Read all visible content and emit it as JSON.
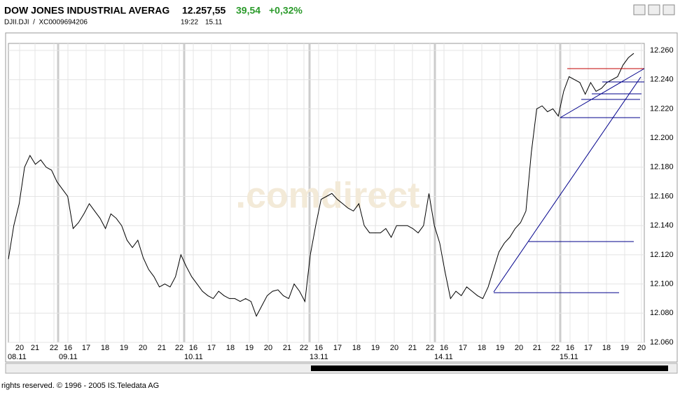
{
  "header": {
    "title": "DOW JONES INDUSTRIAL AVERAG",
    "price": "12.257,55",
    "change": "39,54",
    "change_pct": "+0,32%",
    "symbol": "DJII.DJI  /  XC0009694206",
    "time": "19:22",
    "date": "15.11"
  },
  "chart_data": {
    "type": "line",
    "watermark": ".comdirect",
    "color": "#000000",
    "ylim": [
      12060,
      12260
    ],
    "yticks": [
      {
        "value": 12060,
        "label": "12.060"
      },
      {
        "value": 12080,
        "label": "12.080"
      },
      {
        "value": 12100,
        "label": "12.100"
      },
      {
        "value": 12120,
        "label": "12.120"
      },
      {
        "value": 12140,
        "label": "12.140"
      },
      {
        "value": 12160,
        "label": "12.160"
      },
      {
        "value": 12180,
        "label": "12.180"
      },
      {
        "value": 12200,
        "label": "12.200"
      },
      {
        "value": 12220,
        "label": "12.220"
      },
      {
        "value": 12240,
        "label": "12.240"
      },
      {
        "value": 12260,
        "label": "12.260"
      }
    ],
    "hour_labels": [
      "20",
      "21",
      "22",
      "16",
      "17",
      "18",
      "19",
      "20",
      "21",
      "22",
      "16",
      "17",
      "18",
      "19",
      "20",
      "21",
      "22",
      "16",
      "17",
      "18",
      "19",
      "20",
      "21",
      "22",
      "16",
      "17",
      "18",
      "19",
      "20",
      "21",
      "22",
      "16",
      "17",
      "18",
      "19",
      "20"
    ],
    "date_labels": [
      "08.11",
      "09.11",
      "10.11",
      "13.11",
      "14.11",
      "15.11"
    ],
    "values": [
      12117,
      12140,
      12155,
      12180,
      12188,
      12182,
      12185,
      12180,
      12178,
      12170,
      12165,
      12160,
      12138,
      12142,
      12148,
      12155,
      12150,
      12145,
      12138,
      12148,
      12145,
      12140,
      12130,
      12125,
      12130,
      12118,
      12110,
      12105,
      12098,
      12100,
      12098,
      12105,
      12120,
      12112,
      12105,
      12100,
      12095,
      12092,
      12090,
      12095,
      12092,
      12090,
      12090,
      12088,
      12090,
      12088,
      12078,
      12085,
      12092,
      12095,
      12096,
      12092,
      12090,
      12100,
      12095,
      12088,
      12120,
      12140,
      12158,
      12160,
      12162,
      12158,
      12155,
      12152,
      12150,
      12155,
      12140,
      12135,
      12135,
      12135,
      12138,
      12132,
      12140,
      12140,
      12140,
      12138,
      12135,
      12140,
      12162,
      12140,
      12128,
      12108,
      12090,
      12095,
      12092,
      12098,
      12095,
      12092,
      12090,
      12098,
      12110,
      12122,
      12128,
      12132,
      12138,
      12142,
      12150,
      12190,
      12220,
      12222,
      12218,
      12220,
      12215,
      12232,
      12242,
      12240,
      12238,
      12230,
      12238,
      12232,
      12234,
      12238,
      12240,
      12242,
      12250,
      12255,
      12258
    ]
  },
  "footer": "rights reserved. © 1996 - 2005 IS.Teledata AG"
}
